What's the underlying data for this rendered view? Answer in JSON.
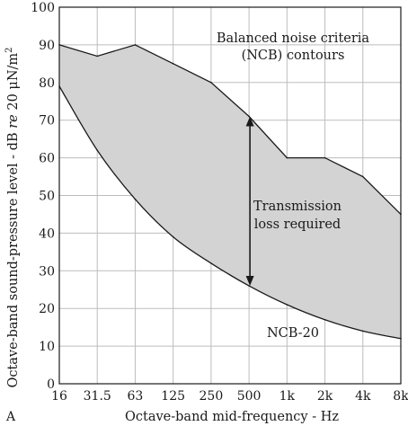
{
  "chart_data": {
    "type": "area",
    "panel_label": "A",
    "xlabel": "Octave-band mid-frequency - Hz",
    "ylabel": "Octave-band sound-pressure level - dB re 20 μN/m²",
    "ylabel_parts": [
      "Octave-band sound-pressure level - dB ",
      "re",
      " 20 μN/m",
      "2"
    ],
    "categories": [
      "16",
      "31.5",
      "63",
      "125",
      "250",
      "500",
      "1k",
      "2k",
      "4k",
      "8k"
    ],
    "yticks": [
      0,
      10,
      20,
      30,
      40,
      50,
      60,
      70,
      80,
      90,
      100
    ],
    "ylim": [
      0,
      100
    ],
    "grid": true,
    "series": [
      {
        "values": [
          90,
          87,
          90,
          85,
          80,
          71,
          60,
          60,
          55,
          45
        ]
      },
      {
        "name": "NCB-20",
        "values": [
          79,
          62,
          49,
          39,
          32,
          26,
          21,
          17,
          14,
          12
        ]
      }
    ],
    "annotations": {
      "title_lines": [
        "Balanced noise criteria",
        "(NCB) contours"
      ],
      "arrow_label_lines": [
        "Transmission",
        "loss required"
      ],
      "curve_label": "NCB-20",
      "arrow_between": {
        "category": "500",
        "from": 26,
        "to": 71
      }
    },
    "colors": {
      "fill": "#d3d3d3",
      "line": "#1a1a1a",
      "grid": "#bdbdbd"
    }
  }
}
